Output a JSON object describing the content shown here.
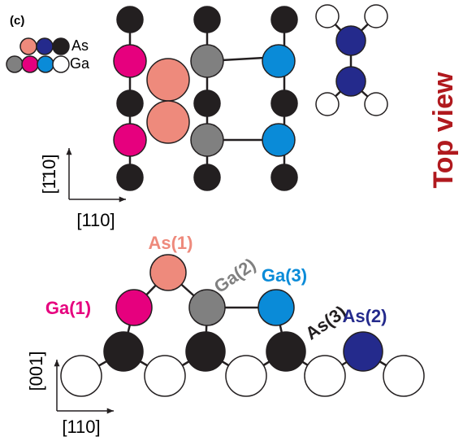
{
  "panel_label": "(c)",
  "legend": {
    "as": "As",
    "ga": "Ga"
  },
  "top_view": {
    "title": "Top view",
    "axis_vertical": "[1̄10]",
    "axis_horizontal": "[110]"
  },
  "side_view": {
    "axis_vertical": "[001]",
    "axis_horizontal": "[110]",
    "labels": [
      "As(1)",
      "Ga(1)",
      "Ga(2)",
      "Ga(3)",
      "As(3)",
      "As(2)"
    ]
  }
}
